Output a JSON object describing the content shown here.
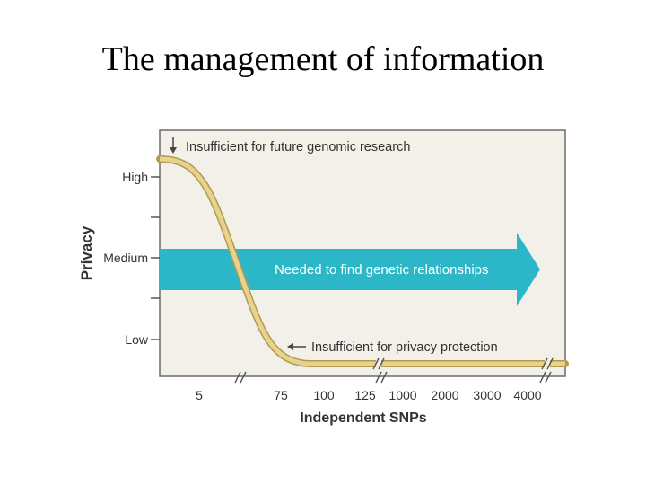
{
  "slide": {
    "title": "The management of information"
  },
  "figure": {
    "y_axis_title": "Privacy",
    "y_ticks": [
      "High",
      "Medium",
      "Low"
    ],
    "x_axis_title": "Independent SNPs",
    "x_ticks": [
      "5",
      "75",
      "100",
      "125",
      "1000",
      "2000",
      "3000",
      "4000"
    ],
    "annotations": {
      "top": "Insufficient for future genomic research",
      "arrow": "Needed to find genetic relationships",
      "bottom": "Insufficient for privacy protection"
    },
    "colors": {
      "panel": "#f3efe9",
      "arrow": "#2cb7c8",
      "curve": "#d8c27a",
      "curve_edge": "#b49a4a"
    }
  }
}
